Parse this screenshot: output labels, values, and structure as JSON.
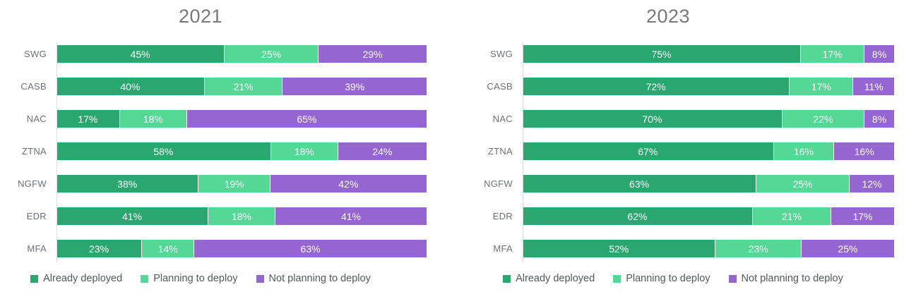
{
  "colors": {
    "already_deployed": "#2aa76e",
    "planning_to_deploy": "#55d795",
    "not_planning_to_deploy": "#9565d2",
    "axis_line": "#d8dbe0",
    "title_text": "#77797d",
    "category_text": "#6c7077",
    "legend_text": "#54585e",
    "bar_value_text": "#ffffff"
  },
  "chart_data": [
    {
      "type": "bar",
      "orientation": "horizontal",
      "stacked": true,
      "title": "2021",
      "xlim": [
        0,
        100
      ],
      "grid": false,
      "legend_position": "bottom",
      "value_suffix": "%",
      "categories": [
        "SWG",
        "CASB",
        "NAC",
        "ZTNA",
        "NGFW",
        "EDR",
        "MFA"
      ],
      "series": [
        {
          "name": "Already deployed",
          "color": "#2aa76e",
          "values": [
            45,
            40,
            17,
            58,
            38,
            41,
            23
          ]
        },
        {
          "name": "Planning to deploy",
          "color": "#55d795",
          "values": [
            25,
            21,
            18,
            18,
            19,
            18,
            14
          ]
        },
        {
          "name": "Not planning to deploy",
          "color": "#9565d2",
          "values": [
            29,
            39,
            65,
            24,
            42,
            41,
            63
          ]
        }
      ]
    },
    {
      "type": "bar",
      "orientation": "horizontal",
      "stacked": true,
      "title": "2023",
      "xlim": [
        0,
        100
      ],
      "grid": false,
      "legend_position": "bottom",
      "value_suffix": "%",
      "categories": [
        "SWG",
        "CASB",
        "NAC",
        "ZTNA",
        "NGFW",
        "EDR",
        "MFA"
      ],
      "series": [
        {
          "name": "Already deployed",
          "color": "#2aa76e",
          "values": [
            75,
            72,
            70,
            67,
            63,
            62,
            52
          ]
        },
        {
          "name": "Planning to deploy",
          "color": "#55d795",
          "values": [
            17,
            17,
            22,
            16,
            25,
            21,
            23
          ]
        },
        {
          "name": "Not planning to deploy",
          "color": "#9565d2",
          "values": [
            8,
            11,
            8,
            16,
            12,
            17,
            25
          ]
        }
      ]
    }
  ]
}
